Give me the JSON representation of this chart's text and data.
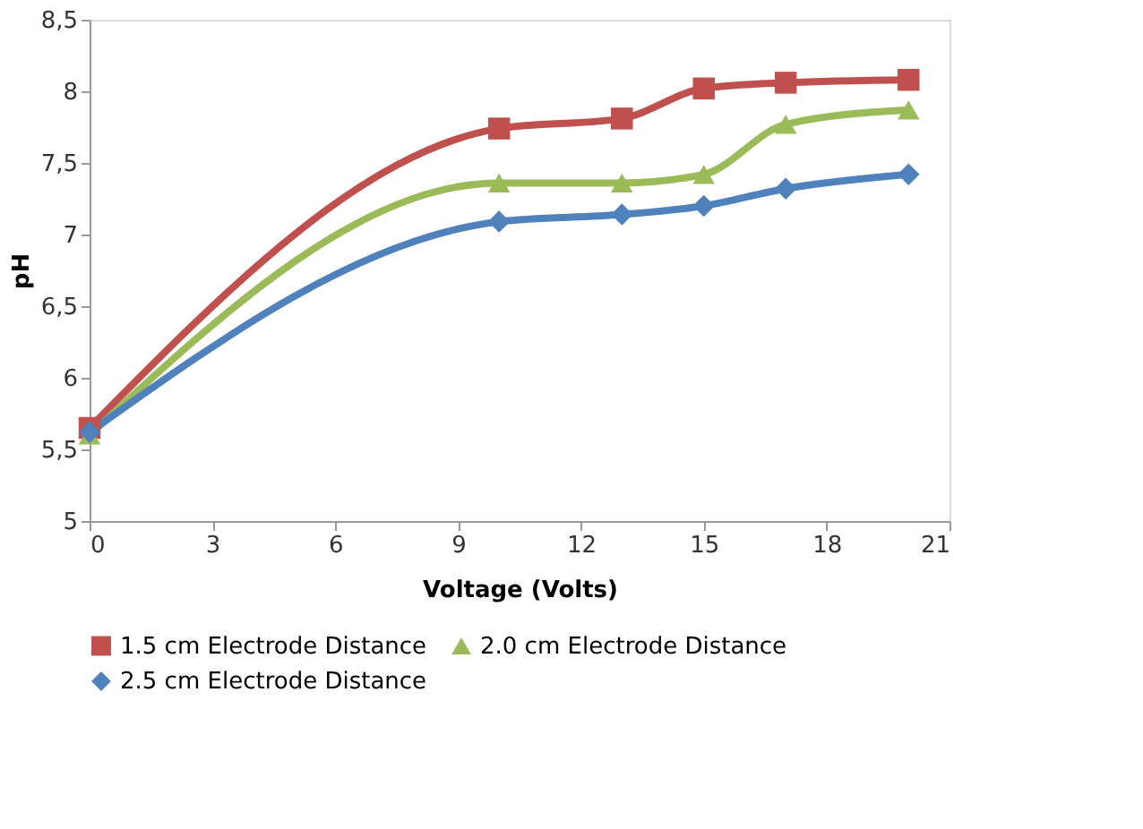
{
  "chart_data": {
    "type": "line",
    "xlabel": "Voltage (Volts)",
    "ylabel": "pH",
    "x": [
      0,
      10,
      13,
      15,
      17,
      20
    ],
    "series": [
      {
        "name": "1.5 cm Electrode Distance",
        "color": "#c0504d",
        "marker": "square",
        "values": [
          5.65,
          7.74,
          7.81,
          8.02,
          8.06,
          8.08
        ]
      },
      {
        "name": "2.0 cm Electrode Distance",
        "color": "#9bbb59",
        "marker": "triangle",
        "values": [
          5.6,
          7.36,
          7.36,
          7.42,
          7.77,
          7.87
        ]
      },
      {
        "name": "2.5 cm Electrode Distance",
        "color": "#4f81bd",
        "marker": "diamond",
        "values": [
          5.62,
          7.09,
          7.14,
          7.2,
          7.32,
          7.42
        ]
      }
    ],
    "xlim": [
      0,
      21
    ],
    "xticks": [
      0,
      3,
      6,
      9,
      12,
      15,
      18,
      21
    ],
    "ylim": [
      5,
      8.5
    ],
    "yticks": [
      5,
      {
        "value": 5.5,
        "label": "5,5"
      },
      6,
      {
        "value": 6.5,
        "label": "6,5"
      },
      7,
      {
        "value": 7.5,
        "label": "7,5"
      },
      8,
      {
        "value": 8.5,
        "label": "8,5"
      }
    ],
    "grid": false,
    "legend": "bottom",
    "line_style": "solid"
  }
}
